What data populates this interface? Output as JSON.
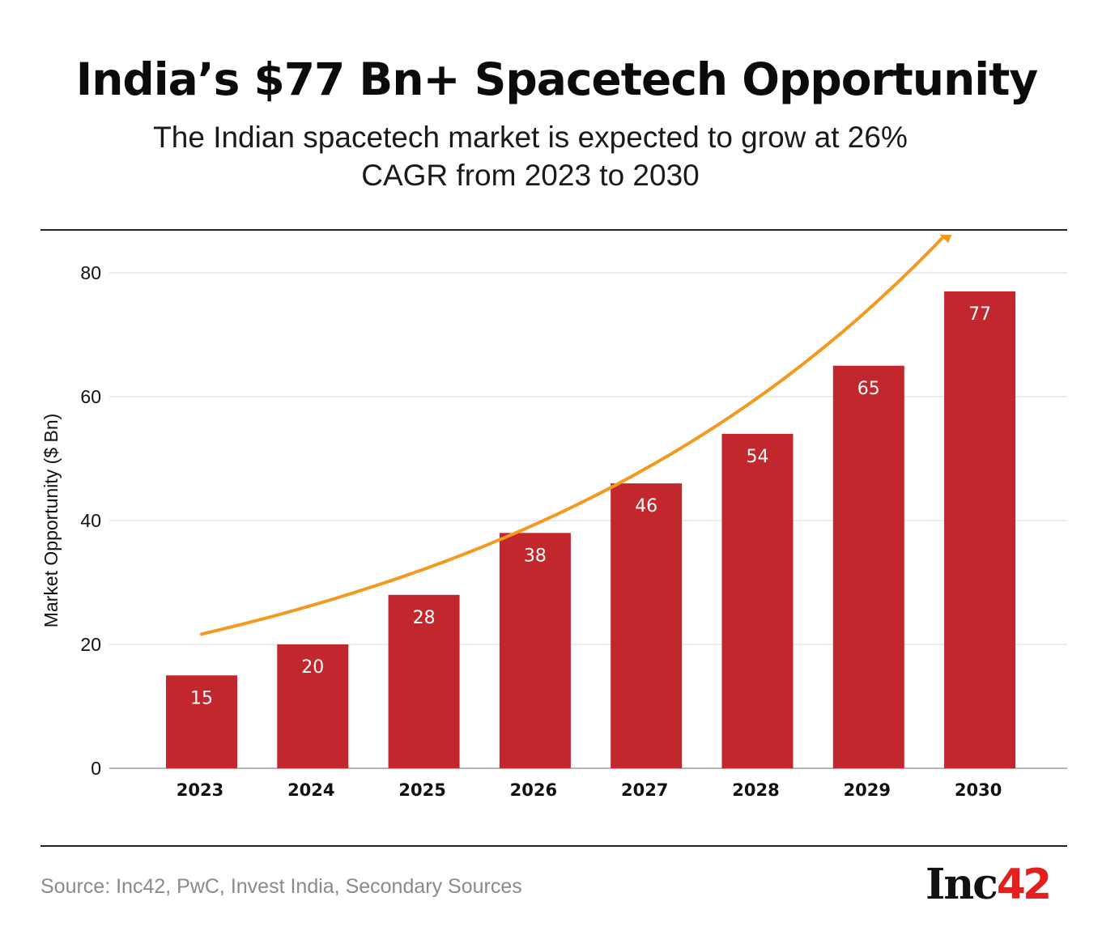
{
  "header": {
    "title": "India’s $77 Bn+ Spacetech Opportunity",
    "subtitle_line1": "The Indian spacetech market is expected to grow at 26%",
    "subtitle_line2": "CAGR from 2023 to 2030"
  },
  "chart_data": {
    "type": "bar",
    "categories": [
      "2023",
      "2024",
      "2025",
      "2026",
      "2027",
      "2028",
      "2029",
      "2030"
    ],
    "values": [
      15,
      20,
      28,
      38,
      46,
      54,
      65,
      77
    ],
    "data_labels": [
      "15",
      "20",
      "28",
      "38",
      "46",
      "54",
      "65",
      "77"
    ],
    "ylabel": "Market Opportunity ($ Bn)",
    "xlabel": "",
    "ylim": [
      0,
      80
    ],
    "yticks": [
      0,
      20,
      40,
      60,
      80
    ],
    "grid": true,
    "bar_color": "#c1272d",
    "trend_arrow_color": "#f39a1e",
    "label_color": "#ffffff"
  },
  "footer": {
    "source": "Source: Inc42, PwC, Invest India, Secondary Sources",
    "logo_text": "Inc",
    "logo_number": "42",
    "logo_number_color": "#e2201f"
  }
}
